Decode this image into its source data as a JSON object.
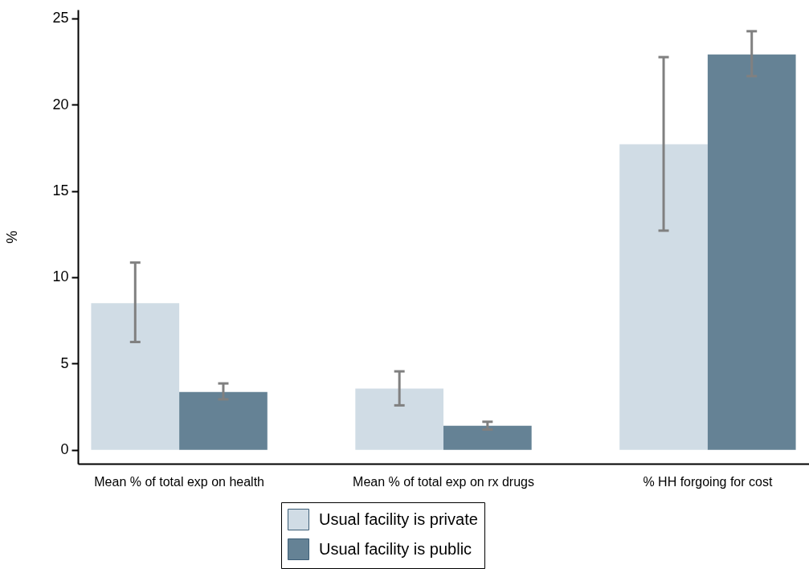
{
  "chart_data": {
    "type": "bar",
    "ylabel": "%",
    "categories": [
      "Mean % of total exp on health",
      "Mean % of total exp on rx drugs",
      "% HH forgoing for cost"
    ],
    "series": [
      {
        "name": "Usual facility is private",
        "color": "#d0dce5",
        "values": [
          8.5,
          3.55,
          17.7
        ],
        "errors": [
          [
            6.25,
            10.85
          ],
          [
            2.58,
            4.55
          ],
          [
            12.7,
            22.75
          ]
        ]
      },
      {
        "name": "Usual facility is public",
        "color": "#658295",
        "values": [
          3.35,
          1.4,
          22.9
        ],
        "errors": [
          [
            2.93,
            3.85
          ],
          [
            1.18,
            1.63
          ],
          [
            21.65,
            24.25
          ]
        ]
      }
    ],
    "ylim": [
      -0.8,
      25.5
    ],
    "yticks": [
      0,
      5,
      10,
      15,
      20,
      25
    ],
    "grid": false,
    "legend": "bottom"
  }
}
